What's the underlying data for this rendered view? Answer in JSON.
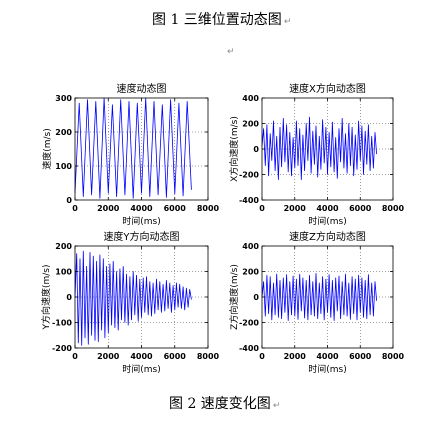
{
  "captions": {
    "top": "图 1 三维位置动态图",
    "bottom": "图 2 速度变化图",
    "paragraph_mark": "↵"
  },
  "chart_data": [
    {
      "type": "line",
      "title": "速度动态图",
      "xlabel": "时间(ms)",
      "ylabel": "速度(m/s)",
      "xlim": [
        0,
        8000
      ],
      "ylim": [
        0,
        300
      ],
      "xticks": [
        0,
        2000,
        4000,
        6000,
        8000
      ],
      "xtick_labels": [
        "0",
        "2000",
        "4000",
        "6000",
        "8000"
      ],
      "yticks": [
        0,
        100,
        200,
        300
      ],
      "ytick_labels": [
        "0",
        "100",
        "200",
        "300"
      ],
      "grid": true,
      "line_color": "#0000ff",
      "series": [
        {
          "points": [
            [
              0,
              20
            ],
            [
              250,
              285
            ],
            [
              500,
              10
            ],
            [
              750,
              295
            ],
            [
              1000,
              15
            ],
            [
              1250,
              290
            ],
            [
              1500,
              5
            ],
            [
              1750,
              300
            ],
            [
              2000,
              20
            ],
            [
              2250,
              280
            ],
            [
              2500,
              10
            ],
            [
              2750,
              295
            ],
            [
              3000,
              15
            ],
            [
              3250,
              290
            ],
            [
              3500,
              5
            ],
            [
              3750,
              285
            ],
            [
              4000,
              20
            ],
            [
              4250,
              300
            ],
            [
              4500,
              10
            ],
            [
              4750,
              290
            ],
            [
              5000,
              15
            ],
            [
              5250,
              280
            ],
            [
              5500,
              8
            ],
            [
              5750,
              295
            ],
            [
              6000,
              18
            ],
            [
              6250,
              285
            ],
            [
              6500,
              12
            ],
            [
              6750,
              290
            ],
            [
              7000,
              30
            ]
          ]
        }
      ]
    },
    {
      "type": "line",
      "title": "速度X方向动态图",
      "xlabel": "时间(ms)",
      "ylabel": "X方向速度(m/s)",
      "xlim": [
        0,
        8000
      ],
      "ylim": [
        -400,
        400
      ],
      "xticks": [
        0,
        2000,
        4000,
        6000,
        8000
      ],
      "xtick_labels": [
        "0",
        "2000",
        "4000",
        "6000",
        "8000"
      ],
      "yticks": [
        -400,
        -200,
        0,
        200,
        400
      ],
      "ytick_labels": [
        "-400",
        "-200",
        "0",
        "200",
        "400"
      ],
      "grid": true,
      "line_color": "#0000ff",
      "series": [
        {
          "points": [
            [
              0,
              20
            ],
            [
              100,
              160
            ],
            [
              200,
              -130
            ],
            [
              300,
              190
            ],
            [
              400,
              -210
            ],
            [
              500,
              120
            ],
            [
              600,
              -90
            ],
            [
              700,
              220
            ],
            [
              800,
              -170
            ],
            [
              900,
              100
            ],
            [
              1000,
              -240
            ],
            [
              1100,
              170
            ],
            [
              1200,
              -140
            ],
            [
              1300,
              240
            ],
            [
              1400,
              -100
            ],
            [
              1500,
              190
            ],
            [
              1600,
              -180
            ],
            [
              1700,
              130
            ],
            [
              1800,
              -210
            ],
            [
              1900,
              90
            ],
            [
              2000,
              -150
            ],
            [
              2100,
              220
            ],
            [
              2200,
              -130
            ],
            [
              2300,
              160
            ],
            [
              2400,
              -240
            ],
            [
              2500,
              110
            ],
            [
              2600,
              -170
            ],
            [
              2700,
              200
            ],
            [
              2800,
              -90
            ],
            [
              2900,
              250
            ],
            [
              3000,
              -190
            ],
            [
              3100,
              140
            ],
            [
              3200,
              -120
            ],
            [
              3300,
              180
            ],
            [
              3400,
              -220
            ],
            [
              3500,
              100
            ],
            [
              3600,
              -160
            ],
            [
              3700,
              230
            ],
            [
              3800,
              -110
            ],
            [
              3900,
              170
            ],
            [
              4000,
              -200
            ],
            [
              4100,
              130
            ],
            [
              4200,
              -140
            ],
            [
              4300,
              210
            ],
            [
              4400,
              -180
            ],
            [
              4500,
              90
            ],
            [
              4600,
              -230
            ],
            [
              4700,
              160
            ],
            [
              4800,
              -100
            ],
            [
              4900,
              240
            ],
            [
              5000,
              -150
            ],
            [
              5100,
              120
            ],
            [
              5200,
              -190
            ],
            [
              5300,
              200
            ],
            [
              5400,
              -130
            ],
            [
              5500,
              170
            ],
            [
              5600,
              -210
            ],
            [
              5700,
              110
            ],
            [
              5800,
              -160
            ],
            [
              5900,
              220
            ],
            [
              6000,
              -90
            ],
            [
              6100,
              180
            ],
            [
              6200,
              -200
            ],
            [
              6300,
              140
            ],
            [
              6400,
              -120
            ],
            [
              6500,
              190
            ],
            [
              6600,
              -170
            ],
            [
              6700,
              100
            ],
            [
              6800,
              -150
            ],
            [
              6900,
              130
            ],
            [
              7000,
              -40
            ]
          ]
        }
      ]
    },
    {
      "type": "line",
      "title": "速度Y方向动态图",
      "xlabel": "时间(ms)",
      "ylabel": "Y方向速度(m/s)",
      "xlim": [
        0,
        8000
      ],
      "ylim": [
        -200,
        200
      ],
      "xticks": [
        0,
        2000,
        4000,
        6000,
        8000
      ],
      "xtick_labels": [
        "0",
        "2000",
        "4000",
        "6000",
        "8000"
      ],
      "yticks": [
        -200,
        -100,
        0,
        100,
        200
      ],
      "ytick_labels": [
        "-200",
        "-100",
        "0",
        "100",
        "200"
      ],
      "grid": true,
      "line_color": "#0000ff",
      "series": [
        {
          "points": [
            [
              0,
              0
            ],
            [
              100,
              170
            ],
            [
              200,
              -180
            ],
            [
              300,
              150
            ],
            [
              400,
              -190
            ],
            [
              500,
              180
            ],
            [
              600,
              -160
            ],
            [
              700,
              120
            ],
            [
              800,
              -185
            ],
            [
              900,
              175
            ],
            [
              1000,
              -150
            ],
            [
              1100,
              160
            ],
            [
              1200,
              -170
            ],
            [
              1300,
              140
            ],
            [
              1400,
              -175
            ],
            [
              1500,
              165
            ],
            [
              1600,
              -130
            ],
            [
              1700,
              150
            ],
            [
              1800,
              -160
            ],
            [
              1900,
              120
            ],
            [
              2000,
              -140
            ],
            [
              2100,
              130
            ],
            [
              2200,
              -110
            ],
            [
              2300,
              140
            ],
            [
              2400,
              -120
            ],
            [
              2500,
              100
            ],
            [
              2600,
              -130
            ],
            [
              2700,
              110
            ],
            [
              2800,
              -90
            ],
            [
              2900,
              120
            ],
            [
              3000,
              -100
            ],
            [
              3100,
              90
            ],
            [
              3200,
              -110
            ],
            [
              3300,
              80
            ],
            [
              3400,
              -90
            ],
            [
              3500,
              100
            ],
            [
              3600,
              -70
            ],
            [
              3700,
              85
            ],
            [
              3800,
              -95
            ],
            [
              3900,
              70
            ],
            [
              4000,
              -80
            ],
            [
              4100,
              75
            ],
            [
              4200,
              -60
            ],
            [
              4300,
              80
            ],
            [
              4400,
              -70
            ],
            [
              4500,
              60
            ],
            [
              4600,
              -75
            ],
            [
              4700,
              55
            ],
            [
              4800,
              -65
            ],
            [
              4900,
              70
            ],
            [
              5000,
              -50
            ],
            [
              5100,
              60
            ],
            [
              5200,
              -60
            ],
            [
              5300,
              50
            ],
            [
              5400,
              -55
            ],
            [
              5500,
              65
            ],
            [
              5600,
              -45
            ],
            [
              5700,
              55
            ],
            [
              5800,
              -60
            ],
            [
              5900,
              45
            ],
            [
              6000,
              -50
            ],
            [
              6100,
              55
            ],
            [
              6200,
              -40
            ],
            [
              6300,
              50
            ],
            [
              6400,
              -45
            ],
            [
              6500,
              40
            ],
            [
              6600,
              -50
            ],
            [
              6700,
              35
            ],
            [
              6800,
              -40
            ],
            [
              6900,
              30
            ],
            [
              7000,
              -10
            ]
          ]
        }
      ]
    },
    {
      "type": "line",
      "title": "速度Z方向动态图",
      "xlabel": "时间(ms)",
      "ylabel": "Z方向速度(m/s)",
      "xlim": [
        0,
        8000
      ],
      "ylim": [
        -400,
        400
      ],
      "xticks": [
        0,
        2000,
        4000,
        6000,
        8000
      ],
      "xtick_labels": [
        "0",
        "2000",
        "4000",
        "6000",
        "8000"
      ],
      "yticks": [
        -400,
        -200,
        0,
        200,
        400
      ],
      "ytick_labels": [
        "-400",
        "-200",
        "0",
        "200",
        "400"
      ],
      "grid": true,
      "line_color": "#0000ff",
      "series": [
        {
          "points": [
            [
              0,
              0
            ],
            [
              100,
              120
            ],
            [
              200,
              -150
            ],
            [
              300,
              170
            ],
            [
              400,
              -130
            ],
            [
              500,
              160
            ],
            [
              600,
              -180
            ],
            [
              700,
              110
            ],
            [
              800,
              -140
            ],
            [
              900,
              180
            ],
            [
              1000,
              -160
            ],
            [
              1100,
              130
            ],
            [
              1200,
              -170
            ],
            [
              1300,
              150
            ],
            [
              1400,
              -120
            ],
            [
              1500,
              175
            ],
            [
              1600,
              -185
            ],
            [
              1700,
              120
            ],
            [
              1800,
              -140
            ],
            [
              1900,
              165
            ],
            [
              2000,
              -150
            ],
            [
              2100,
              140
            ],
            [
              2200,
              -175
            ],
            [
              2300,
              180
            ],
            [
              2400,
              -110
            ],
            [
              2500,
              150
            ],
            [
              2600,
              -165
            ],
            [
              2700,
              130
            ],
            [
              2800,
              -180
            ],
            [
              2900,
              170
            ],
            [
              3000,
              -140
            ],
            [
              3100,
              120
            ],
            [
              3200,
              -150
            ],
            [
              3300,
              185
            ],
            [
              3400,
              -170
            ],
            [
              3500,
              110
            ],
            [
              3600,
              -130
            ],
            [
              3700,
              160
            ],
            [
              3800,
              -180
            ],
            [
              3900,
              140
            ],
            [
              4000,
              -120
            ],
            [
              4100,
              175
            ],
            [
              4200,
              -160
            ],
            [
              4300,
              130
            ],
            [
              4400,
              -185
            ],
            [
              4500,
              150
            ],
            [
              4600,
              -110
            ],
            [
              4700,
              165
            ],
            [
              4800,
              -170
            ],
            [
              4900,
              120
            ],
            [
              5000,
              -140
            ],
            [
              5100,
              180
            ],
            [
              5200,
              -150
            ],
            [
              5300,
              110
            ],
            [
              5400,
              -175
            ],
            [
              5500,
              160
            ],
            [
              5600,
              -130
            ],
            [
              5700,
              140
            ],
            [
              5800,
              -180
            ],
            [
              5900,
              170
            ],
            [
              6000,
              -120
            ],
            [
              6100,
              150
            ],
            [
              6200,
              -160
            ],
            [
              6300,
              130
            ],
            [
              6400,
              -170
            ],
            [
              6500,
              175
            ],
            [
              6600,
              -140
            ],
            [
              6700,
              110
            ],
            [
              6800,
              -150
            ],
            [
              6900,
              120
            ],
            [
              7000,
              -30
            ]
          ]
        }
      ]
    }
  ]
}
